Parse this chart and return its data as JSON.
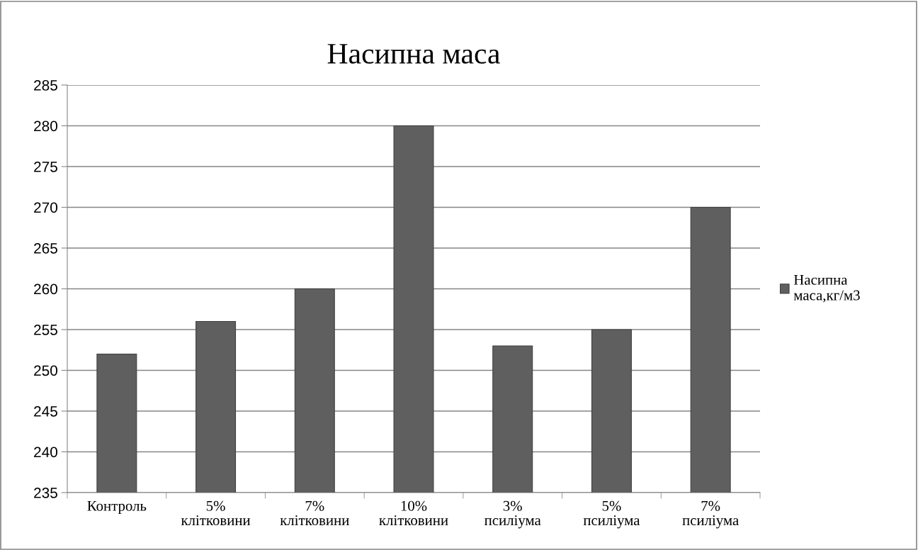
{
  "chart_data": {
    "type": "bar",
    "title": "Насипна маса",
    "categories": [
      "Контроль",
      "5%\nклітковини",
      "7%\nклітковини",
      "10%\nклітковини",
      "3%\nпсиліума",
      "5%\nпсиліума",
      "7%\nпсиліума"
    ],
    "series": [
      {
        "name": "Насипна маса,кг/м3",
        "color": "#5f5f5f",
        "values": [
          252,
          256,
          260,
          280,
          253,
          255,
          270
        ]
      }
    ],
    "ylim": [
      235,
      285
    ],
    "yticks": [
      235,
      240,
      245,
      250,
      255,
      260,
      265,
      270,
      275,
      280,
      285
    ],
    "grid": "y",
    "legend": "right"
  }
}
